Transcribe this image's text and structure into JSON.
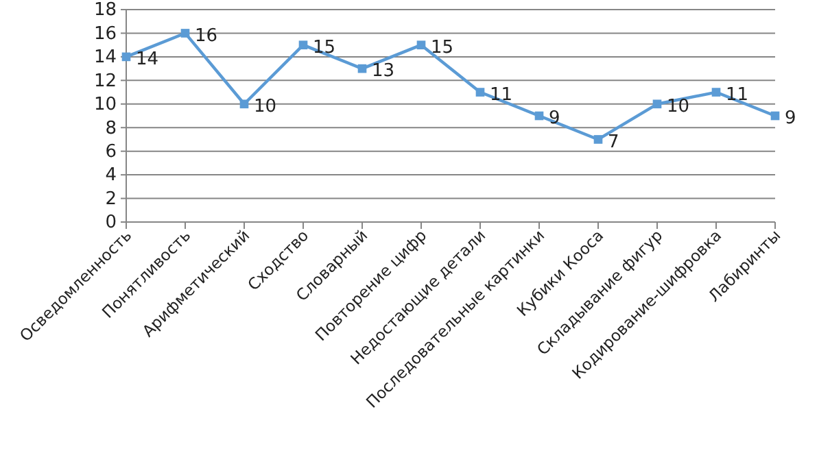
{
  "chart_data": {
    "type": "line",
    "categories": [
      "Осведомленность",
      "Понятливость",
      "Арифметический",
      "Сходство",
      "Словарный",
      "Повторение цифр",
      "Недостающие детали",
      "Последовательные картинки",
      "Кубики Кооса",
      "Складывание фигур",
      "Кодирование-шифровка",
      "Лабиринты"
    ],
    "series": [
      {
        "color": "#5b9bd5",
        "values": [
          14,
          16,
          10,
          15,
          13,
          15,
          11,
          9,
          7,
          10,
          11,
          9
        ]
      }
    ],
    "ylim": [
      0,
      18
    ],
    "yticks": [
      0,
      2,
      4,
      6,
      8,
      10,
      12,
      14,
      16,
      18
    ],
    "grid": "y",
    "marker": "square",
    "line_style": "solid",
    "data_labels": true
  }
}
